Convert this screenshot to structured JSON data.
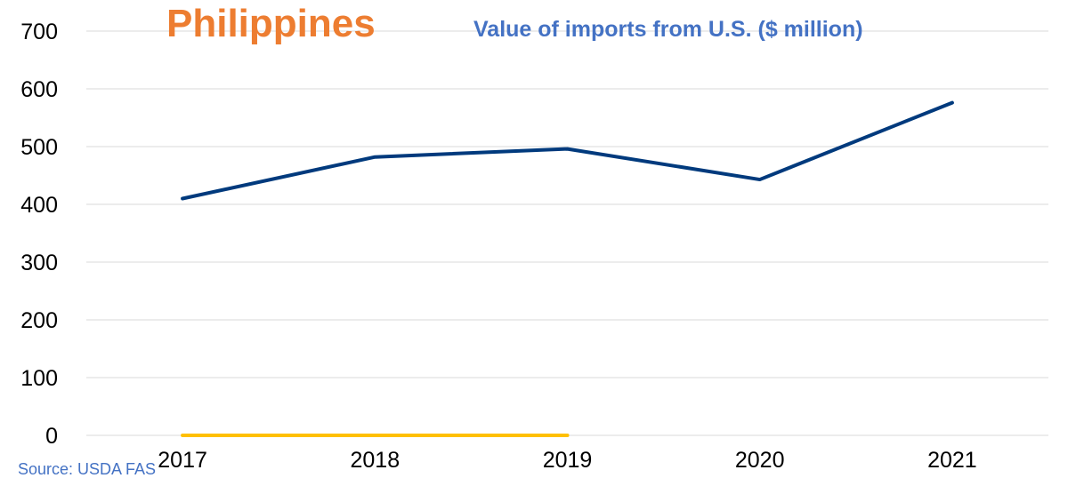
{
  "chart_data": {
    "type": "line",
    "title": "Philippines",
    "subtitle": "Value of imports from U.S. ($ million)",
    "categories": [
      "2017",
      "2018",
      "2019",
      "2020",
      "2021"
    ],
    "series": [
      {
        "values": [
          410,
          482,
          496,
          443,
          576
        ],
        "color": "#003A7D"
      },
      {
        "values": [
          0,
          0,
          0,
          null,
          null
        ],
        "color": "#FFC000"
      }
    ],
    "ylim": [
      0,
      700
    ],
    "yticks": [
      0,
      100,
      200,
      300,
      400,
      500,
      600,
      700
    ],
    "grid": true,
    "source": "Source: USDA FAS"
  }
}
